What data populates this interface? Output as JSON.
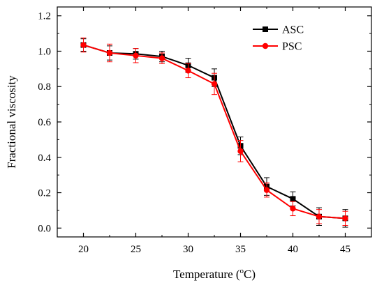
{
  "chart_data": {
    "type": "line",
    "xlabel": "Temperature (",
    "xlabel_superscript": "o",
    "xlabel_unit": "C)",
    "ylabel": "Fractional viscosity",
    "x": [
      20,
      22.5,
      25,
      27.5,
      30,
      32.5,
      35,
      37.5,
      40,
      42.5,
      45
    ],
    "xticks": [
      20,
      25,
      30,
      35,
      40,
      45
    ],
    "xtick_labels": [
      "20",
      "25",
      "30",
      "35",
      "40",
      "45"
    ],
    "yticks": [
      0.0,
      0.2,
      0.4,
      0.6,
      0.8,
      1.0,
      1.2
    ],
    "ytick_labels": [
      "0.0",
      "0.2",
      "0.4",
      "0.6",
      "0.8",
      "1.0",
      "1.2"
    ],
    "xlim": [
      17.5,
      47.5
    ],
    "ylim": [
      -0.05,
      1.25
    ],
    "grid": false,
    "legend_position": "top-right",
    "series": [
      {
        "name": "ASC",
        "color": "#000000",
        "marker": "square",
        "values": [
          1.035,
          0.99,
          0.985,
          0.97,
          0.92,
          0.85,
          0.465,
          0.235,
          0.165,
          0.065,
          0.055
        ],
        "errors": [
          0.035,
          0.04,
          0.03,
          0.03,
          0.04,
          0.05,
          0.05,
          0.05,
          0.04,
          0.05,
          0.05
        ]
      },
      {
        "name": "PSC",
        "color": "#ff0000",
        "marker": "circle",
        "values": [
          1.035,
          0.99,
          0.975,
          0.96,
          0.89,
          0.815,
          0.435,
          0.215,
          0.11,
          0.065,
          0.055
        ],
        "errors": [
          0.04,
          0.05,
          0.04,
          0.03,
          0.04,
          0.06,
          0.06,
          0.04,
          0.04,
          0.04,
          0.04
        ]
      }
    ]
  }
}
